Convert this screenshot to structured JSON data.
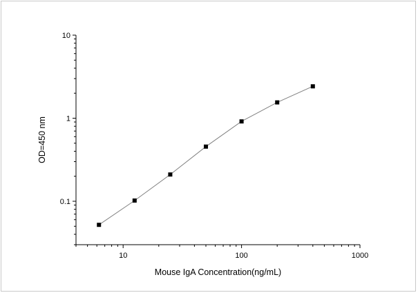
{
  "chart_data": {
    "type": "scatter",
    "title": "",
    "xlabel": "Mouse IgA Concentration(ng/mL)",
    "ylabel": "OD=450 nm",
    "x_scale": "log",
    "y_scale": "log",
    "xlim": [
      4,
      1000
    ],
    "ylim": [
      0.03,
      10
    ],
    "x_ticks": [
      {
        "value": 10,
        "label": "10"
      },
      {
        "value": 100,
        "label": "100"
      },
      {
        "value": 1000,
        "label": "1000"
      }
    ],
    "y_ticks": [
      {
        "value": 0.1,
        "label": "0.1"
      },
      {
        "value": 1,
        "label": "1"
      },
      {
        "value": 10,
        "label": "10"
      }
    ],
    "grid": false,
    "legend": "none",
    "series": [
      {
        "x": [
          6.25,
          12.5,
          25,
          50,
          100,
          200,
          400
        ],
        "y": [
          0.052,
          0.102,
          0.21,
          0.455,
          0.915,
          1.55,
          2.42
        ],
        "marker": "square",
        "connected": true
      }
    ],
    "colors": {
      "marker": "#000000",
      "line": "#808080",
      "axis": "#000000"
    }
  }
}
